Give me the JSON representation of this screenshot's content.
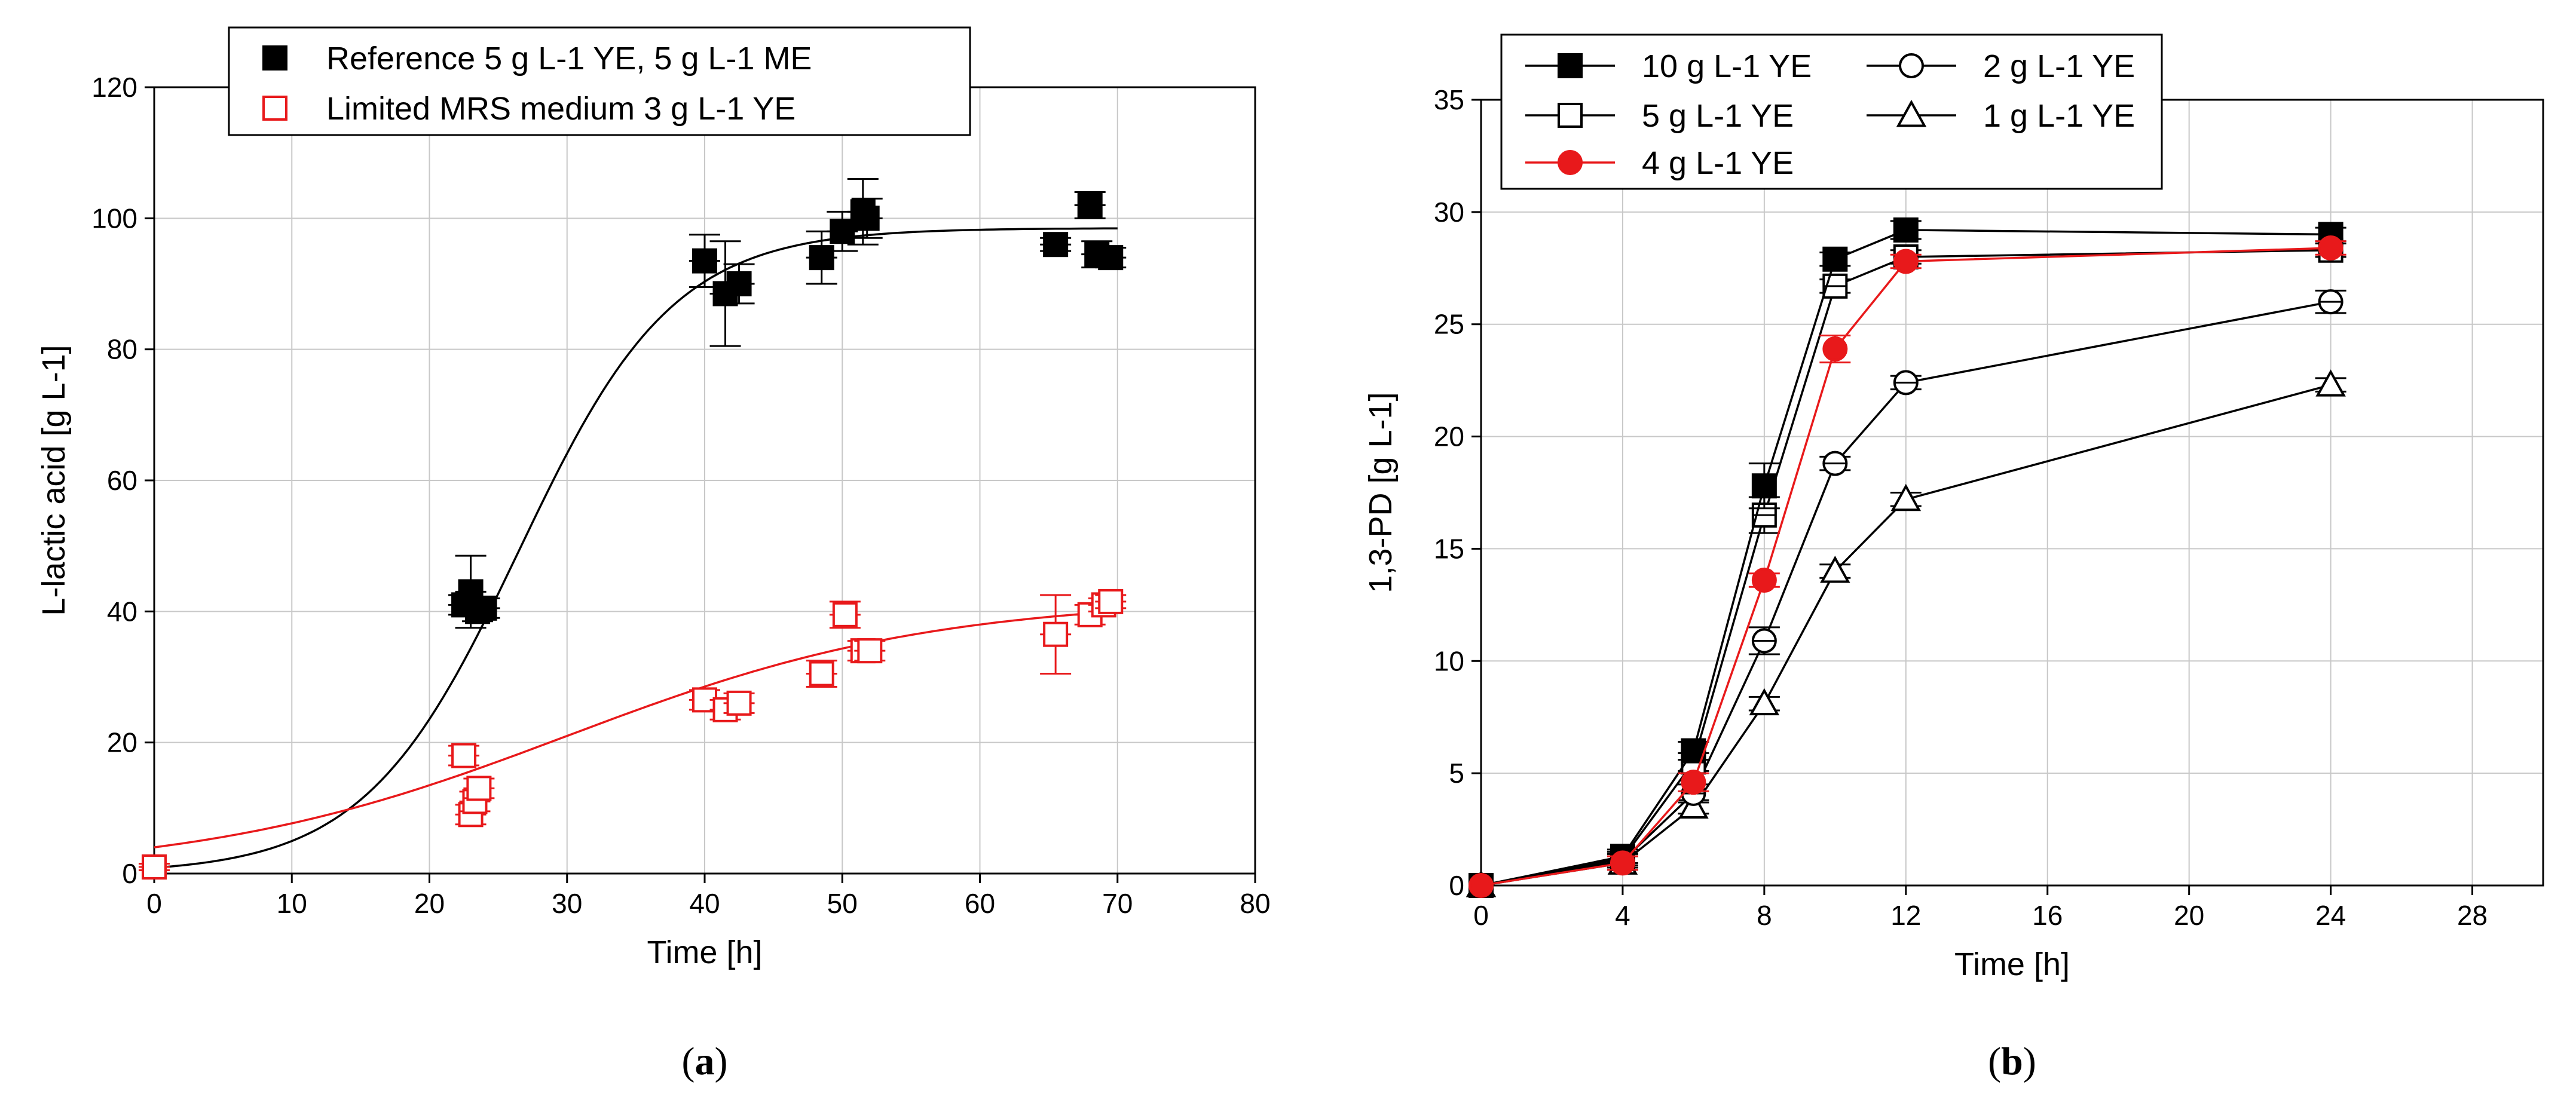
{
  "chart_data": [
    {
      "type": "scatter",
      "panel_label_prefix": "(",
      "panel_label_letter": "a",
      "panel_label_suffix": ")",
      "xlabel": "Time [h]",
      "ylabel": "L-lactic acid [g L-1]",
      "xlim": [
        0,
        80
      ],
      "ylim": [
        0,
        120
      ],
      "xticks": [
        0,
        10,
        20,
        30,
        40,
        50,
        60,
        70,
        80
      ],
      "yticks": [
        0,
        20,
        40,
        60,
        80,
        100,
        120
      ],
      "grid": true,
      "legend_position": "top-center",
      "series": [
        {
          "name": "Reference 5 g L-1 YE, 5 g L-1 ME",
          "color": "#000000",
          "marker": "filled-square",
          "points": [
            {
              "x": 0,
              "y": 1,
              "err": 0.5
            },
            {
              "x": 22.5,
              "y": 41,
              "err": 1.5
            },
            {
              "x": 23,
              "y": 43,
              "err": 5.5
            },
            {
              "x": 23.5,
              "y": 40,
              "err": 1.5
            },
            {
              "x": 24,
              "y": 40.5,
              "err": 1.5
            },
            {
              "x": 40,
              "y": 93.5,
              "err": 4
            },
            {
              "x": 41.5,
              "y": 88.5,
              "err": 8
            },
            {
              "x": 42.5,
              "y": 90,
              "err": 3
            },
            {
              "x": 48.5,
              "y": 94,
              "err": 4
            },
            {
              "x": 50,
              "y": 98,
              "err": 3
            },
            {
              "x": 51.5,
              "y": 101,
              "err": 5
            },
            {
              "x": 51.8,
              "y": 100,
              "err": 3
            },
            {
              "x": 65.5,
              "y": 96,
              "err": 1
            },
            {
              "x": 68,
              "y": 102,
              "err": 2
            },
            {
              "x": 68.5,
              "y": 94.5,
              "err": 2
            },
            {
              "x": 69.5,
              "y": 94,
              "err": 1.5
            }
          ],
          "fit": {
            "model": "logistic",
            "K": 98.5,
            "r": 0.178,
            "t0": 26.5
          }
        },
        {
          "name": "Limited MRS medium 3 g L-1 YE",
          "color": "#e8191b",
          "marker": "open-square",
          "points": [
            {
              "x": 0,
              "y": 1,
              "err": 0.5
            },
            {
              "x": 22.5,
              "y": 18,
              "err": 1.5
            },
            {
              "x": 23,
              "y": 9,
              "err": 1.5
            },
            {
              "x": 23.3,
              "y": 11,
              "err": 1.5
            },
            {
              "x": 23.6,
              "y": 13,
              "err": 1.5
            },
            {
              "x": 40,
              "y": 26.5,
              "err": 1.5
            },
            {
              "x": 41.5,
              "y": 25,
              "err": 1.5
            },
            {
              "x": 42.5,
              "y": 26,
              "err": 1.5
            },
            {
              "x": 48.5,
              "y": 30.5,
              "err": 2
            },
            {
              "x": 50.2,
              "y": 39.5,
              "err": 2
            },
            {
              "x": 51.5,
              "y": 34,
              "err": 1.5
            },
            {
              "x": 52,
              "y": 34,
              "err": 1.5
            },
            {
              "x": 65.5,
              "y": 36.5,
              "err": 6
            },
            {
              "x": 68,
              "y": 39.5,
              "err": 1.5
            },
            {
              "x": 69,
              "y": 41,
              "err": 1
            },
            {
              "x": 69.5,
              "y": 41.5,
              "err": 1
            }
          ],
          "fit": {
            "model": "logistic",
            "K": 42,
            "r": 0.075,
            "t0": 30
          }
        }
      ]
    },
    {
      "type": "line",
      "panel_label_prefix": "(",
      "panel_label_letter": "b",
      "panel_label_suffix": ")",
      "xlabel": "Time [h]",
      "ylabel": "1,3-PD [g L-1]",
      "xlim": [
        0,
        30
      ],
      "ylim": [
        0,
        35
      ],
      "xticks": [
        0,
        4,
        8,
        12,
        16,
        20,
        24,
        28
      ],
      "yticks": [
        0,
        5,
        10,
        15,
        20,
        25,
        30,
        35
      ],
      "grid": true,
      "legend_position": "top-left",
      "x": [
        0,
        4,
        6,
        8,
        10,
        12,
        24
      ],
      "series": [
        {
          "name": "10 g L-1 YE",
          "color": "#000000",
          "marker": "filled-square",
          "values": [
            0,
            1.3,
            6,
            17.8,
            27.9,
            29.2,
            29
          ],
          "errors": [
            0,
            0.3,
            0.4,
            1,
            0.3,
            0.4,
            0.3
          ]
        },
        {
          "name": "5 g L-1 YE",
          "color": "#000000",
          "marker": "open-square",
          "values": [
            0,
            1.2,
            5.5,
            16.5,
            26.7,
            28,
            28.3
          ],
          "errors": [
            0,
            0.3,
            0.4,
            0.8,
            0.3,
            0.3,
            0.3
          ]
        },
        {
          "name": "4 g L-1 YE",
          "color": "#e8191b",
          "marker": "filled-circle",
          "values": [
            0,
            1,
            4.6,
            13.6,
            23.9,
            27.8,
            28.4
          ],
          "errors": [
            0,
            0.3,
            0.4,
            0.3,
            0.6,
            0.3,
            0.3
          ]
        },
        {
          "name": "2 g L-1 YE",
          "color": "#000000",
          "marker": "open-circle",
          "values": [
            0,
            1.1,
            4.1,
            10.9,
            18.8,
            22.4,
            26
          ],
          "errors": [
            0,
            0.3,
            0.4,
            0.6,
            0.3,
            0.3,
            0.5
          ]
        },
        {
          "name": "1 g L-1 YE",
          "color": "#000000",
          "marker": "open-triangle",
          "values": [
            0,
            1,
            3.5,
            8.1,
            14,
            17.2,
            22.3
          ],
          "errors": [
            0,
            0.3,
            0.3,
            0.3,
            0.3,
            0.3,
            0.3
          ]
        }
      ]
    }
  ]
}
